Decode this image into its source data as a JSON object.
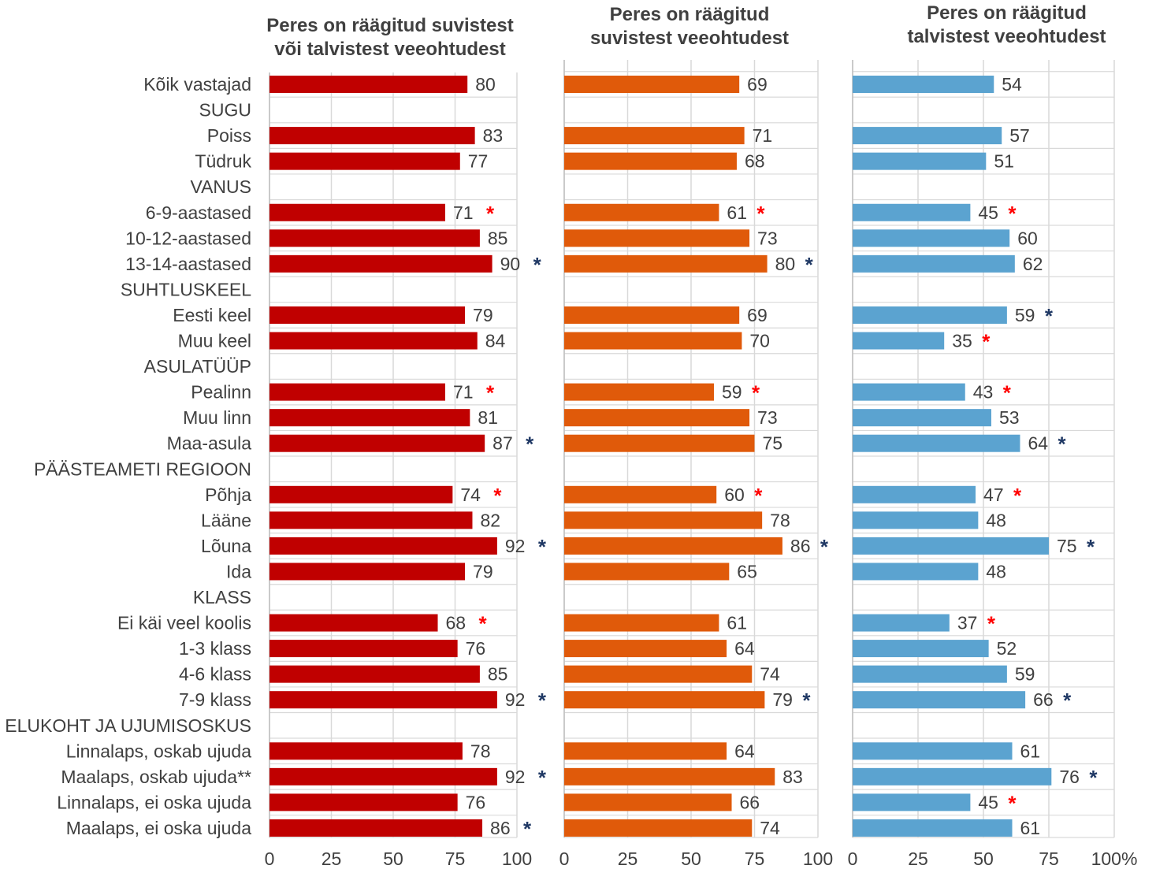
{
  "chart_data": {
    "type": "bar",
    "orientation": "horizontal",
    "grid": true,
    "categories": [
      "Kõik vastajad",
      "SUGU",
      "Poiss",
      "Tüdruk",
      "VANUS",
      "6-9-aastased",
      "10-12-aastased",
      "13-14-aastased",
      "SUHTLUSKEEL",
      "Eesti keel",
      "Muu keel",
      "ASULATÜÜP",
      "Pealinn",
      "Muu linn",
      "Maa-asula",
      "PÄÄSTEAMETI REGIOON",
      "Põhja",
      "Lääne",
      "Lõuna",
      "Ida",
      "KLASS",
      "Ei käi veel koolis",
      "1-3 klass",
      "4-6 klass",
      "7-9 klass",
      "ELUKOHT JA UJUMISOSKUS",
      "Linnalaps, oskab ujuda",
      "Maalaps, oskab ujuda**",
      "Linnalaps, ei oska ujuda",
      "Maalaps, ei oska ujuda"
    ],
    "panels": [
      {
        "title": "Peres on räägitud suvistest\nvõi talvistest veeohtudest",
        "color": "#c00000",
        "values": [
          80,
          null,
          83,
          77,
          null,
          71,
          85,
          90,
          null,
          79,
          84,
          null,
          71,
          81,
          87,
          null,
          74,
          82,
          92,
          79,
          null,
          68,
          76,
          85,
          92,
          null,
          78,
          92,
          76,
          86
        ],
        "markers": [
          "",
          "",
          "",
          "",
          "",
          "*",
          "",
          "*",
          "",
          "",
          "",
          "",
          "*",
          "",
          "*",
          "",
          "*",
          "",
          "*",
          "",
          "",
          "*",
          "",
          "",
          "*",
          "",
          "",
          "*",
          "",
          "*"
        ],
        "marker_colors": [
          "",
          "",
          "",
          "",
          "",
          "red",
          "",
          "blue",
          "",
          "",
          "",
          "",
          "red",
          "",
          "blue",
          "",
          "red",
          "",
          "blue",
          "",
          "",
          "red",
          "",
          "",
          "blue",
          "",
          "",
          "blue",
          "",
          "blue"
        ],
        "xlim": [
          0,
          100
        ],
        "ticks": [
          "0",
          "25",
          "50",
          "75",
          "100"
        ]
      },
      {
        "title": "Peres on räägitud\nsuvistest veeohtudest",
        "color": "#e05a0a",
        "values": [
          69,
          null,
          71,
          68,
          null,
          61,
          73,
          80,
          null,
          69,
          70,
          null,
          59,
          73,
          75,
          null,
          60,
          78,
          86,
          65,
          null,
          61,
          64,
          74,
          79,
          null,
          64,
          83,
          66,
          74
        ],
        "markers": [
          "",
          "",
          "",
          "",
          "",
          "*",
          "",
          "*",
          "",
          "",
          "",
          "",
          "*",
          "",
          "",
          "",
          "*",
          "",
          "*",
          "",
          "",
          "",
          "",
          "",
          "*",
          "",
          "",
          "",
          "",
          ""
        ],
        "marker_colors": [
          "",
          "",
          "",
          "",
          "",
          "red",
          "",
          "blue",
          "",
          "",
          "",
          "",
          "red",
          "",
          "",
          "",
          "red",
          "",
          "blue",
          "",
          "",
          "",
          "",
          "",
          "blue",
          "",
          "",
          "",
          "",
          ""
        ],
        "xlim": [
          0,
          100
        ],
        "ticks": [
          "0",
          "25",
          "50",
          "75",
          "100"
        ]
      },
      {
        "title": "Peres on räägitud\ntalvistest veeohtudest",
        "color": "#5ba3d0",
        "values": [
          54,
          null,
          57,
          51,
          null,
          45,
          60,
          62,
          null,
          59,
          35,
          null,
          43,
          53,
          64,
          null,
          47,
          48,
          75,
          48,
          null,
          37,
          52,
          59,
          66,
          null,
          61,
          76,
          45,
          61
        ],
        "markers": [
          "",
          "",
          "",
          "",
          "",
          "*",
          "",
          "",
          "",
          "*",
          "*",
          "",
          "*",
          "",
          "*",
          "",
          "*",
          "",
          "*",
          "",
          "",
          "*",
          "",
          "",
          "*",
          "",
          "",
          "*",
          "*",
          ""
        ],
        "marker_colors": [
          "",
          "",
          "",
          "",
          "",
          "red",
          "",
          "",
          "",
          "blue",
          "red",
          "",
          "red",
          "",
          "blue",
          "",
          "red",
          "",
          "blue",
          "",
          "",
          "red",
          "",
          "",
          "blue",
          "",
          "",
          "blue",
          "red",
          ""
        ],
        "xlim": [
          0,
          100
        ],
        "ticks": [
          "0",
          "25",
          "50",
          "75",
          "100%"
        ]
      }
    ],
    "colors": {
      "red_marker": "#ff0000",
      "blue_marker": "#1f3864",
      "grid": "#d9d9d9",
      "label": "#404040"
    }
  }
}
